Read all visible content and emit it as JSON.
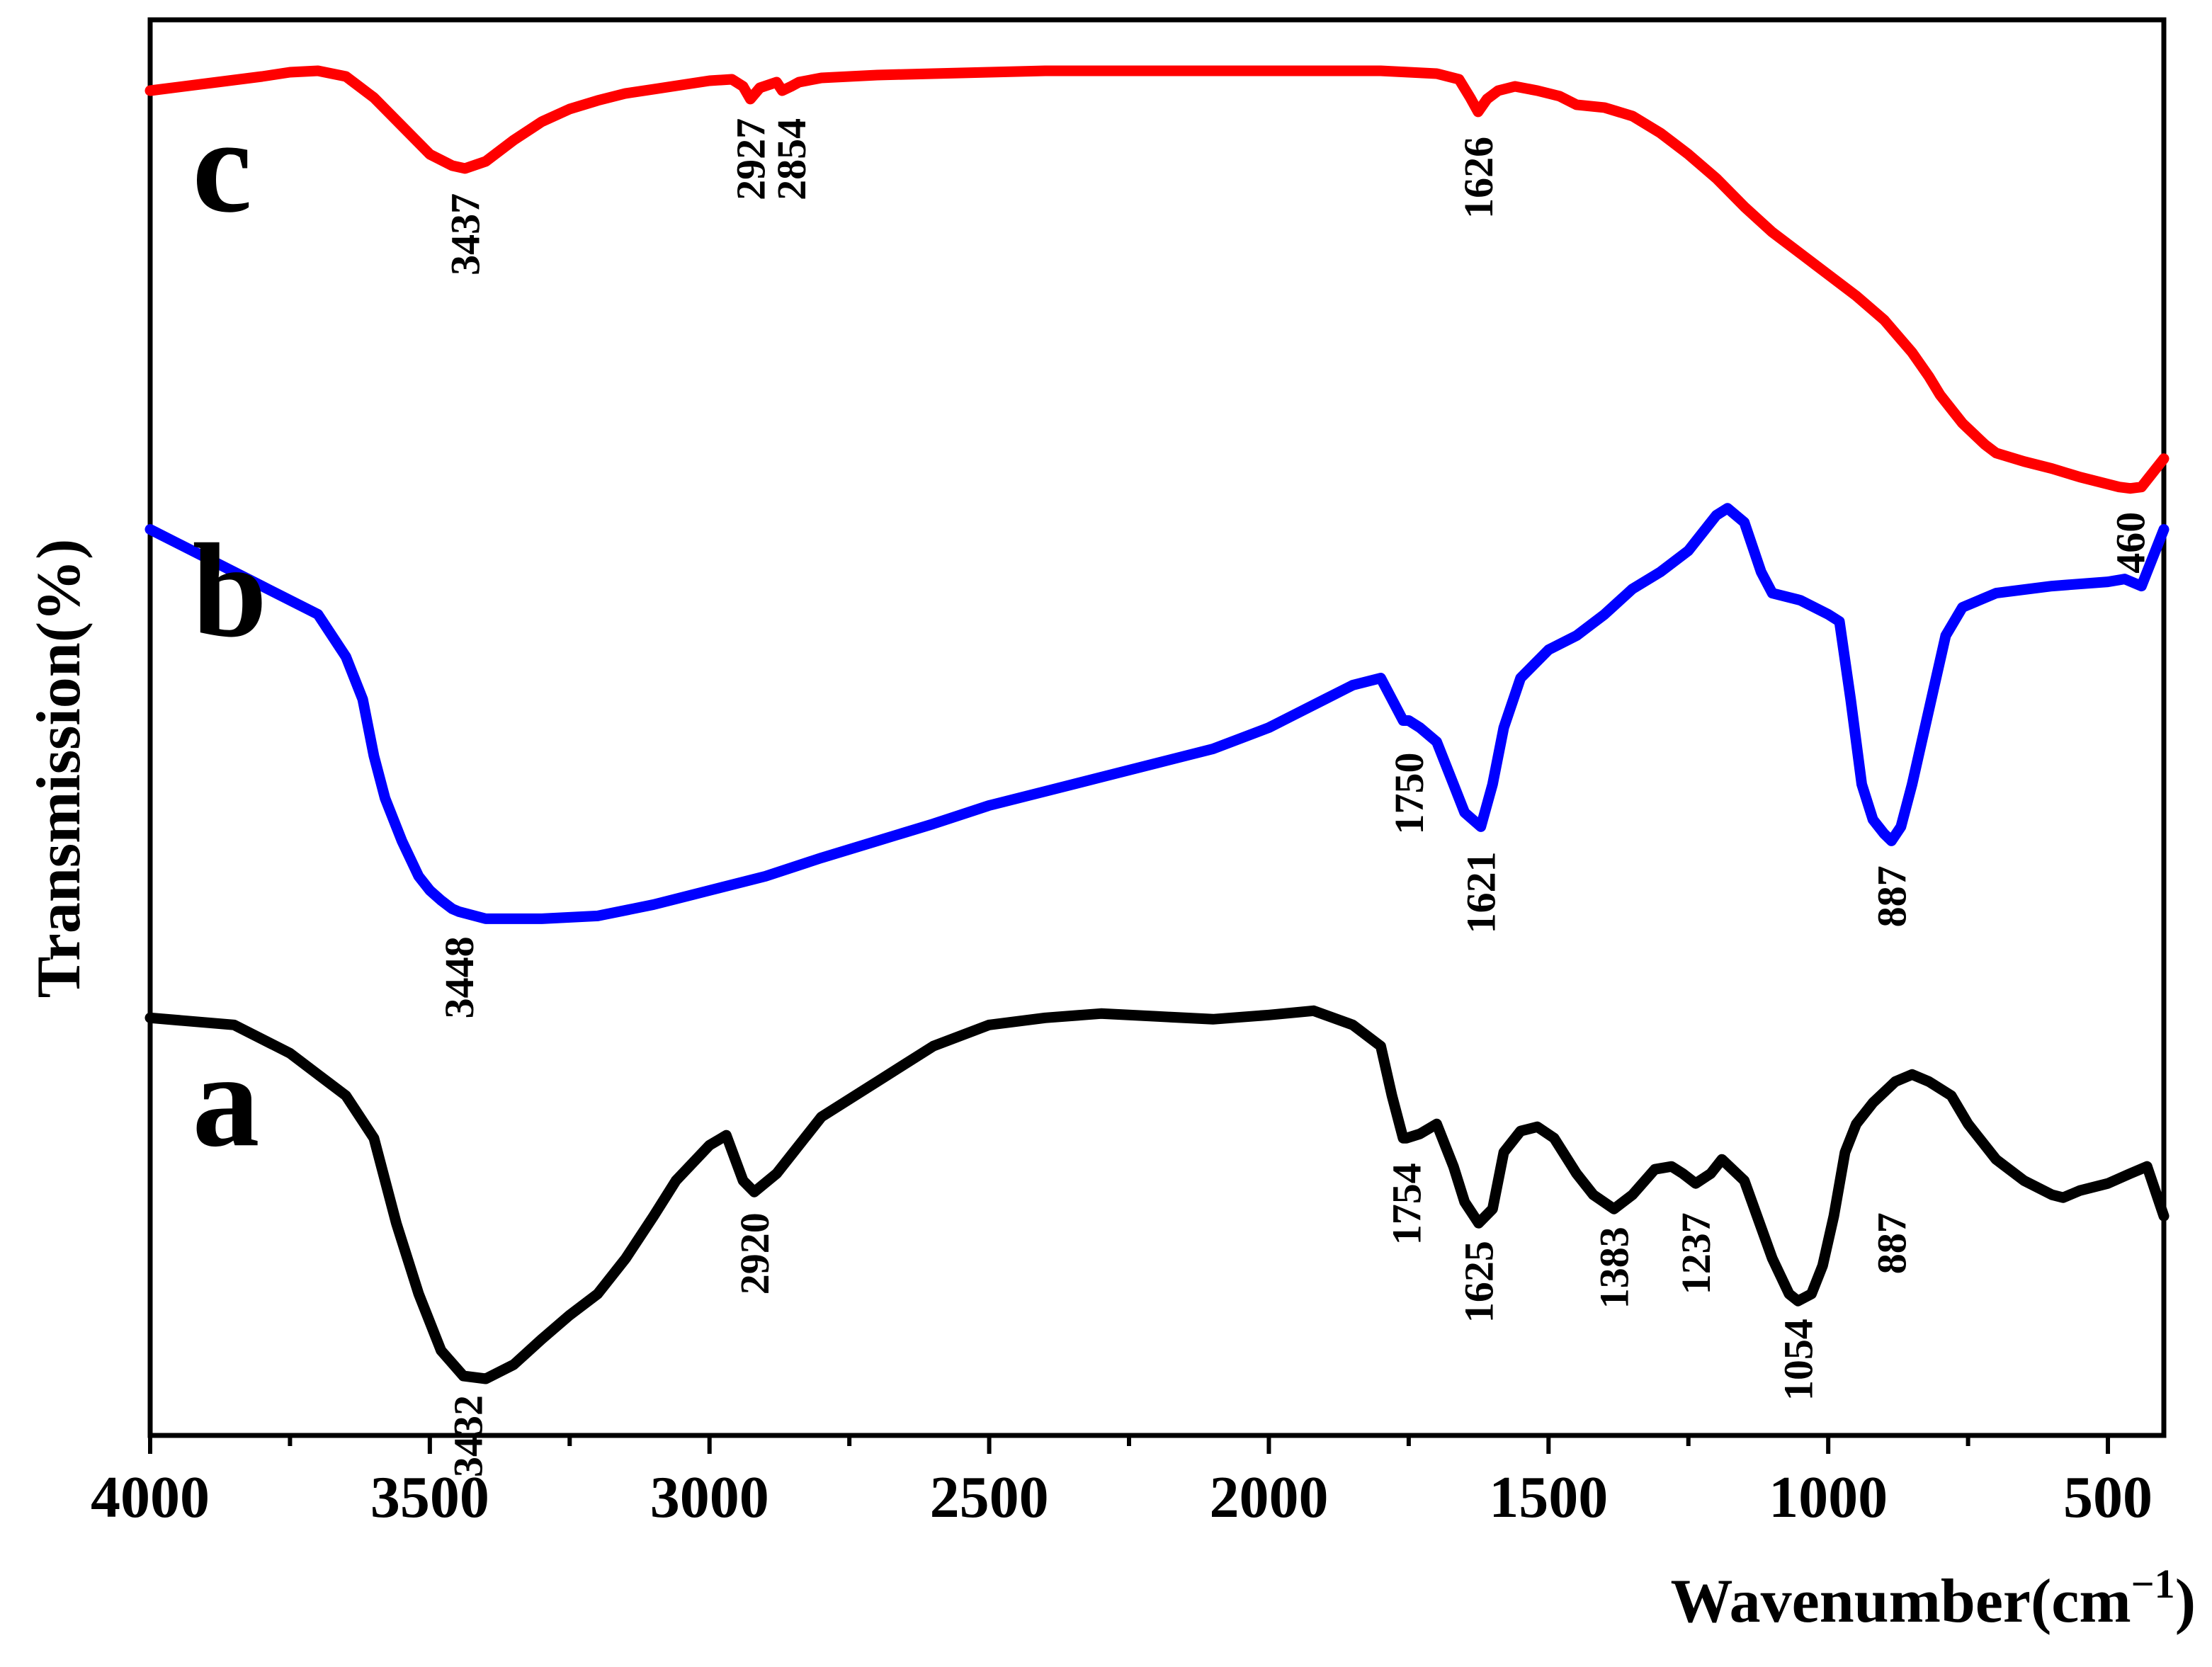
{
  "chart_data": {
    "type": "line",
    "title": "",
    "xlabel": "Wavenumber(cm",
    "xlabel_superscript": "−1",
    "xlabel_close": ")",
    "ylabel": "Transmission(%)",
    "xlim": [
      4000,
      400
    ],
    "xreversed": true,
    "xticks": [
      4000,
      3500,
      3000,
      2500,
      2000,
      1500,
      1000,
      500
    ],
    "xtick_labels": [
      "4000",
      "3500",
      "3000",
      "2500",
      "2000",
      "1500",
      "1000",
      "500"
    ],
    "ylim": [
      0,
      100
    ],
    "y_ticks_shown": false,
    "grid": false,
    "legend": "none (inline series letters)",
    "series": [
      {
        "name": "a",
        "label": "a",
        "color": "#000000",
        "x": [
          4000,
          3850,
          3750,
          3700,
          3650,
          3600,
          3560,
          3520,
          3480,
          3440,
          3400,
          3350,
          3300,
          3250,
          3200,
          3150,
          3100,
          3060,
          3000,
          2970,
          2940,
          2920,
          2880,
          2850,
          2800,
          2700,
          2600,
          2500,
          2400,
          2300,
          2200,
          2100,
          2000,
          1920,
          1850,
          1800,
          1780,
          1760,
          1754,
          1730,
          1700,
          1670,
          1650,
          1625,
          1600,
          1580,
          1550,
          1520,
          1490,
          1450,
          1420,
          1383,
          1350,
          1310,
          1280,
          1260,
          1237,
          1210,
          1190,
          1150,
          1100,
          1070,
          1054,
          1030,
          1010,
          990,
          970,
          950,
          920,
          880,
          850,
          820,
          780,
          750,
          700,
          650,
          600,
          580,
          550,
          500,
          460,
          430,
          400
        ],
        "y": [
          29.5,
          29.0,
          27.0,
          25.5,
          24.0,
          21.0,
          15.0,
          10.0,
          6.0,
          4.2,
          4.0,
          5.0,
          6.8,
          8.5,
          10.0,
          12.5,
          15.5,
          18.0,
          20.5,
          21.2,
          18.0,
          17.2,
          18.5,
          20.0,
          22.5,
          25.0,
          27.5,
          29.0,
          29.5,
          29.8,
          29.6,
          29.4,
          29.7,
          30.0,
          29.0,
          27.5,
          24.0,
          21.0,
          21.0,
          21.3,
          22.0,
          19.0,
          16.5,
          15.0,
          16.0,
          20.0,
          21.5,
          21.8,
          21.0,
          18.5,
          17.0,
          16.0,
          17.0,
          18.8,
          19.0,
          18.5,
          17.8,
          18.5,
          19.5,
          18.0,
          12.5,
          10.0,
          9.5,
          10.0,
          12.0,
          15.5,
          20.0,
          22.0,
          23.5,
          25.0,
          25.5,
          25.0,
          24.0,
          22.0,
          19.5,
          18.0,
          17.0,
          16.8,
          17.3,
          17.8,
          18.5,
          19.0,
          15.5
        ]
      },
      {
        "name": "b",
        "label": "b",
        "color": "#0000ff",
        "x": [
          4000,
          3900,
          3800,
          3700,
          3650,
          3620,
          3600,
          3580,
          3550,
          3520,
          3500,
          3480,
          3460,
          3448,
          3400,
          3300,
          3200,
          3100,
          3000,
          2900,
          2800,
          2700,
          2600,
          2500,
          2400,
          2300,
          2200,
          2100,
          2000,
          1900,
          1850,
          1800,
          1780,
          1760,
          1750,
          1730,
          1700,
          1670,
          1650,
          1621,
          1600,
          1580,
          1550,
          1500,
          1450,
          1400,
          1350,
          1300,
          1250,
          1200,
          1180,
          1150,
          1120,
          1100,
          1050,
          1000,
          980,
          960,
          940,
          920,
          900,
          887,
          870,
          850,
          830,
          810,
          790,
          760,
          700,
          600,
          500,
          470,
          440,
          420,
          400
        ],
        "y": [
          64.0,
          62.0,
          60.0,
          58.0,
          55.0,
          52.0,
          48.0,
          45.0,
          42.0,
          39.5,
          38.5,
          37.8,
          37.2,
          37.0,
          36.5,
          36.5,
          36.7,
          37.5,
          38.5,
          39.5,
          40.8,
          42.0,
          43.2,
          44.5,
          45.5,
          46.5,
          47.5,
          48.5,
          50.0,
          52.0,
          53.0,
          53.5,
          52.0,
          50.5,
          50.5,
          50.0,
          49.0,
          46.0,
          44.0,
          43.0,
          46.0,
          50.0,
          53.5,
          55.5,
          56.5,
          58.0,
          59.8,
          61.0,
          62.5,
          65.0,
          65.5,
          64.5,
          61.0,
          59.5,
          59.0,
          58.0,
          57.5,
          52.0,
          46.0,
          43.5,
          42.5,
          42.0,
          43.0,
          46.0,
          49.5,
          53.0,
          56.5,
          58.5,
          59.5,
          60.0,
          60.3,
          60.5,
          60.0,
          62.0,
          64.0
        ]
      },
      {
        "name": "c",
        "label": "c",
        "color": "#ff0000",
        "x": [
          4000,
          3900,
          3800,
          3750,
          3700,
          3650,
          3600,
          3550,
          3500,
          3460,
          3437,
          3400,
          3350,
          3300,
          3250,
          3200,
          3150,
          3100,
          3050,
          3000,
          2960,
          2940,
          2927,
          2910,
          2880,
          2870,
          2854,
          2840,
          2800,
          2700,
          2600,
          2500,
          2400,
          2300,
          2200,
          2100,
          2000,
          1900,
          1800,
          1750,
          1700,
          1660,
          1640,
          1626,
          1610,
          1590,
          1560,
          1520,
          1480,
          1450,
          1400,
          1350,
          1300,
          1250,
          1200,
          1150,
          1100,
          1050,
          1000,
          950,
          900,
          850,
          820,
          800,
          760,
          720,
          700,
          650,
          600,
          550,
          500,
          480,
          460,
          440,
          420,
          400
        ],
        "y": [
          95.0,
          95.5,
          96.0,
          96.3,
          96.4,
          96.0,
          94.5,
          92.5,
          90.5,
          89.7,
          89.5,
          90.0,
          91.5,
          92.8,
          93.7,
          94.3,
          94.8,
          95.1,
          95.4,
          95.7,
          95.8,
          95.3,
          94.4,
          95.2,
          95.6,
          95.0,
          95.3,
          95.6,
          95.9,
          96.1,
          96.2,
          96.3,
          96.4,
          96.4,
          96.4,
          96.4,
          96.4,
          96.4,
          96.4,
          96.3,
          96.2,
          95.8,
          94.5,
          93.5,
          94.4,
          95.0,
          95.3,
          95.0,
          94.6,
          94.0,
          93.8,
          93.2,
          92.0,
          90.5,
          88.8,
          86.8,
          85.0,
          83.5,
          82.0,
          80.5,
          78.8,
          76.5,
          74.8,
          73.5,
          71.5,
          70.0,
          69.4,
          68.8,
          68.3,
          67.7,
          67.2,
          67.0,
          66.9,
          67.0,
          68.0,
          69.0
        ]
      }
    ],
    "annotations": [
      {
        "series": "a",
        "x": 3432,
        "text": "3432",
        "y": 3.6
      },
      {
        "series": "a",
        "x": 2920,
        "text": "2920",
        "y": 16.5
      },
      {
        "series": "a",
        "x": 1754,
        "text": "1754",
        "y": 20.0
      },
      {
        "series": "a",
        "x": 1625,
        "text": "1625",
        "y": 14.5
      },
      {
        "series": "a",
        "x": 1383,
        "text": "1383",
        "y": 15.5
      },
      {
        "series": "a",
        "x": 1237,
        "text": "1237",
        "y": 16.5
      },
      {
        "series": "a",
        "x": 1054,
        "text": "1054",
        "y": 9.0
      },
      {
        "series": "a",
        "x": 887,
        "text": "887",
        "y": 16.5
      },
      {
        "series": "b",
        "x": 3448,
        "text": "3448",
        "y": 36.0
      },
      {
        "series": "b",
        "x": 1750,
        "text": "1750",
        "y": 49.0
      },
      {
        "series": "b",
        "x": 1621,
        "text": "1621",
        "y": 42.0
      },
      {
        "series": "b",
        "x": 887,
        "text": "887",
        "y": 41.0
      },
      {
        "series": "c",
        "x": 3437,
        "text": "3437",
        "y": 88.5
      },
      {
        "series": "c",
        "x": 2927,
        "text": "2927",
        "y": 93.8
      },
      {
        "series": "c",
        "x": 2854,
        "text": "2854",
        "y": 93.8
      },
      {
        "series": "c",
        "x": 1626,
        "text": "1626",
        "y": 92.5
      },
      {
        "series": "c",
        "x": 460,
        "text": "460",
        "y": 66.0
      }
    ]
  }
}
